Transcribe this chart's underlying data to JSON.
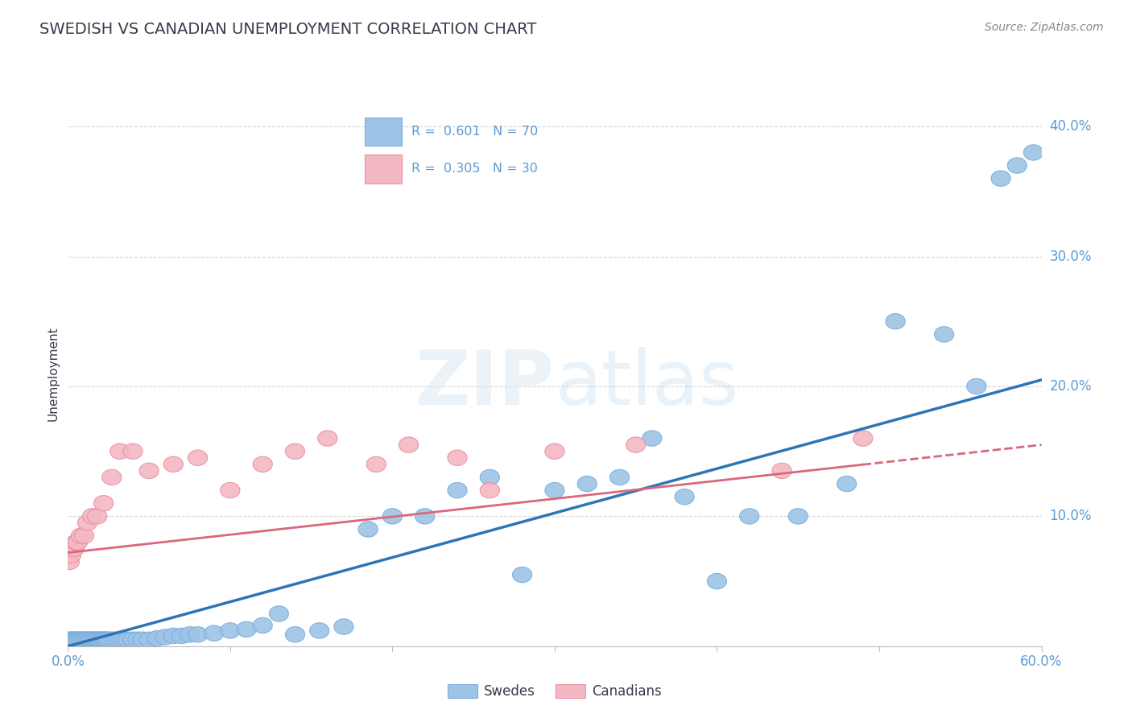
{
  "title": "SWEDISH VS CANADIAN UNEMPLOYMENT CORRELATION CHART",
  "source": "Source: ZipAtlas.com",
  "ylabel": "Unemployment",
  "xlim": [
    0.0,
    0.6
  ],
  "ylim": [
    0.0,
    0.42
  ],
  "x_ticks": [
    0.0,
    0.1,
    0.2,
    0.3,
    0.4,
    0.5,
    0.6
  ],
  "x_tick_labels": [
    "0.0%",
    "",
    "",
    "",
    "",
    "",
    "60.0%"
  ],
  "y_ticks": [
    0.0,
    0.1,
    0.2,
    0.3,
    0.4
  ],
  "y_tick_labels": [
    "",
    "10.0%",
    "20.0%",
    "30.0%",
    "40.0%"
  ],
  "title_color": "#3a3a4a",
  "title_fontsize": 14,
  "axis_color": "#5b9bd5",
  "source_color": "#888888",
  "grid_color": "#cccccc",
  "swede_color": "#9dc3e6",
  "swede_edge_color": "#7aaedc",
  "canadian_color": "#f4b8c4",
  "canadian_edge_color": "#e8909f",
  "swede_line_color": "#2e75b6",
  "canadian_line_color": "#d9687a",
  "swede_R": 0.601,
  "swede_N": 70,
  "canadian_R": 0.305,
  "canadian_N": 30,
  "swedes_x": [
    0.001,
    0.002,
    0.003,
    0.004,
    0.005,
    0.006,
    0.007,
    0.008,
    0.009,
    0.01,
    0.011,
    0.012,
    0.013,
    0.014,
    0.015,
    0.016,
    0.017,
    0.018,
    0.019,
    0.02,
    0.021,
    0.022,
    0.023,
    0.024,
    0.025,
    0.027,
    0.029,
    0.031,
    0.033,
    0.035,
    0.037,
    0.04,
    0.043,
    0.046,
    0.05,
    0.055,
    0.06,
    0.065,
    0.07,
    0.075,
    0.08,
    0.09,
    0.1,
    0.11,
    0.12,
    0.13,
    0.14,
    0.155,
    0.17,
    0.185,
    0.2,
    0.22,
    0.24,
    0.26,
    0.28,
    0.3,
    0.32,
    0.34,
    0.36,
    0.38,
    0.4,
    0.42,
    0.45,
    0.48,
    0.51,
    0.54,
    0.56,
    0.575,
    0.585,
    0.595
  ],
  "swedes_y": [
    0.005,
    0.005,
    0.005,
    0.005,
    0.005,
    0.005,
    0.005,
    0.005,
    0.005,
    0.005,
    0.005,
    0.005,
    0.005,
    0.005,
    0.005,
    0.005,
    0.005,
    0.005,
    0.005,
    0.005,
    0.005,
    0.005,
    0.005,
    0.005,
    0.005,
    0.005,
    0.005,
    0.005,
    0.005,
    0.005,
    0.005,
    0.005,
    0.005,
    0.005,
    0.005,
    0.006,
    0.007,
    0.008,
    0.008,
    0.009,
    0.009,
    0.01,
    0.012,
    0.013,
    0.016,
    0.025,
    0.009,
    0.012,
    0.015,
    0.09,
    0.1,
    0.1,
    0.12,
    0.13,
    0.055,
    0.12,
    0.125,
    0.13,
    0.16,
    0.115,
    0.05,
    0.1,
    0.1,
    0.125,
    0.25,
    0.24,
    0.2,
    0.36,
    0.37,
    0.38
  ],
  "canadians_x": [
    0.001,
    0.002,
    0.003,
    0.004,
    0.005,
    0.006,
    0.008,
    0.01,
    0.012,
    0.015,
    0.018,
    0.022,
    0.027,
    0.032,
    0.04,
    0.05,
    0.065,
    0.08,
    0.1,
    0.12,
    0.14,
    0.16,
    0.19,
    0.21,
    0.24,
    0.26,
    0.3,
    0.35,
    0.44,
    0.49
  ],
  "canadians_y": [
    0.065,
    0.07,
    0.075,
    0.075,
    0.08,
    0.08,
    0.085,
    0.085,
    0.095,
    0.1,
    0.1,
    0.11,
    0.13,
    0.15,
    0.15,
    0.135,
    0.14,
    0.145,
    0.12,
    0.14,
    0.15,
    0.16,
    0.14,
    0.155,
    0.145,
    0.12,
    0.15,
    0.155,
    0.135,
    0.16
  ]
}
